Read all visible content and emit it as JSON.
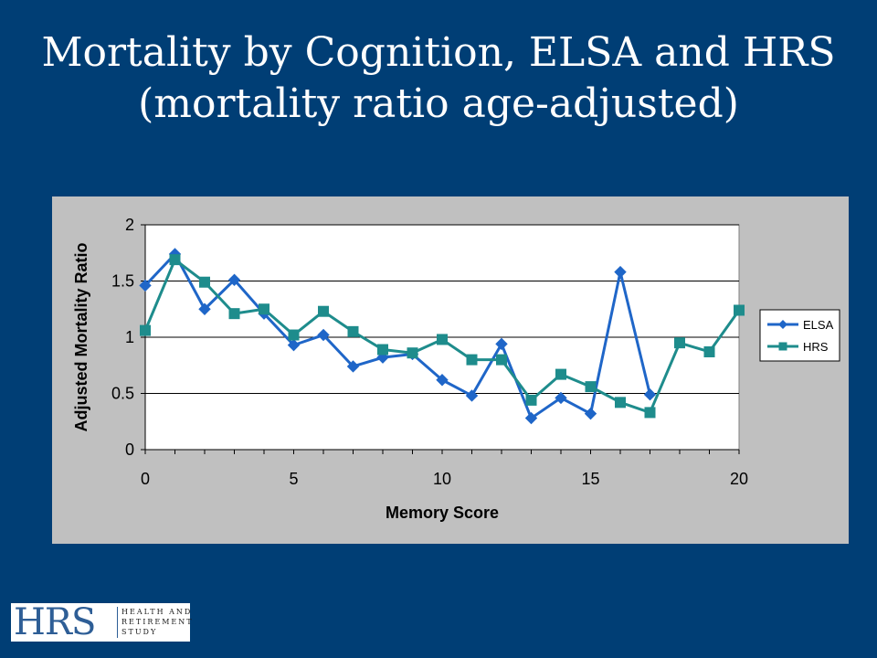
{
  "slide": {
    "title_line1": "Mortality by Cognition, ELSA and HRS",
    "title_line2": "(mortality ratio age-adjusted)"
  },
  "logo": {
    "mark": "HRS",
    "line1": "HEALTH AND",
    "line2": "RETIREMENT",
    "line3": "STUDY"
  },
  "colors": {
    "background": "#003E75",
    "panel": "#C0C0C0",
    "plot_area": "#FFFFFF",
    "elsa": "#1F66C8",
    "hrs": "#1E8C8C"
  },
  "chart_data": {
    "type": "line",
    "title": "",
    "xlabel": "Memory Score",
    "ylabel": "Adjusted Mortality Ratio",
    "xlim": [
      0,
      20
    ],
    "ylim": [
      0,
      2
    ],
    "xticks": [
      "0",
      "5",
      "10",
      "15",
      "20"
    ],
    "xtick_values": [
      0,
      5,
      10,
      15,
      20
    ],
    "yticks": [
      "0",
      "0.5",
      "1",
      "1.5",
      "2"
    ],
    "ytick_values": [
      0,
      0.5,
      1,
      1.5,
      2
    ],
    "grid": "horizontal",
    "legend_position": "right",
    "series": [
      {
        "name": "ELSA",
        "marker": "diamond",
        "color": "#1F66C8",
        "x": [
          0,
          1,
          2,
          3,
          4,
          5,
          6,
          7,
          8,
          9,
          10,
          11,
          12,
          13,
          14,
          15,
          16,
          17
        ],
        "values": [
          1.46,
          1.74,
          1.25,
          1.51,
          1.21,
          0.93,
          1.02,
          0.74,
          0.82,
          0.85,
          0.62,
          0.48,
          0.94,
          0.28,
          0.46,
          0.32,
          1.58,
          0.49
        ]
      },
      {
        "name": "HRS",
        "marker": "square",
        "color": "#1E8C8C",
        "x": [
          0,
          1,
          2,
          3,
          4,
          5,
          6,
          7,
          8,
          9,
          10,
          11,
          12,
          13,
          14,
          15,
          16,
          17,
          18,
          19,
          20
        ],
        "values": [
          1.06,
          1.69,
          1.49,
          1.21,
          1.25,
          1.02,
          1.23,
          1.05,
          0.89,
          0.86,
          0.98,
          0.8,
          0.8,
          0.44,
          0.67,
          0.56,
          0.42,
          0.33,
          0.95,
          0.87,
          1.24
        ]
      }
    ]
  }
}
